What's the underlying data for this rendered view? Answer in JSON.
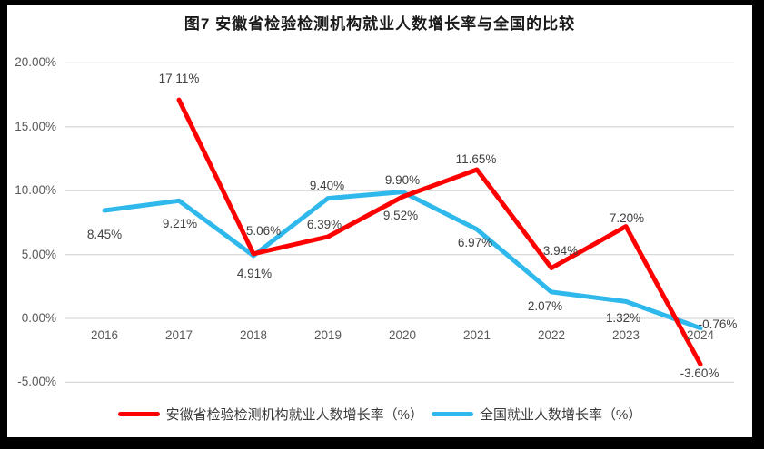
{
  "title": "图7  安徽省检验检测机构就业人数增长率与全国的比较",
  "chart_data": {
    "type": "line",
    "categories": [
      "2016",
      "2017",
      "2018",
      "2019",
      "2020",
      "2021",
      "2022",
      "2023",
      "2024"
    ],
    "series": [
      {
        "name": "安徽省检验检测机构就业人数增长率（%）",
        "color": "#fe0000",
        "values": [
          null,
          17.11,
          5.06,
          6.39,
          9.52,
          11.65,
          3.94,
          7.2,
          -3.6
        ],
        "labels": [
          null,
          "17.11%",
          "5.06%",
          "6.39%",
          "9.52%",
          "11.65%",
          "3.94%",
          "7.20%",
          "-3.60%"
        ]
      },
      {
        "name": "全国就业人数增长率（%）",
        "color": "#2eb8ec",
        "values": [
          8.45,
          9.21,
          4.91,
          9.4,
          9.9,
          6.97,
          2.07,
          1.32,
          -0.76
        ],
        "labels": [
          "8.45%",
          "9.21%",
          "4.91%",
          "9.40%",
          "9.90%",
          "6.97%",
          "2.07%",
          "1.32%",
          "-0.76%"
        ]
      }
    ],
    "y_ticks": [
      "20.00%",
      "15.00%",
      "10.00%",
      "5.00%",
      "0.00%",
      "-5.00%"
    ],
    "ylim": [
      -5,
      20
    ],
    "grid": true,
    "gridline_color": "#d9d9d9",
    "legend_position": "bottom"
  }
}
